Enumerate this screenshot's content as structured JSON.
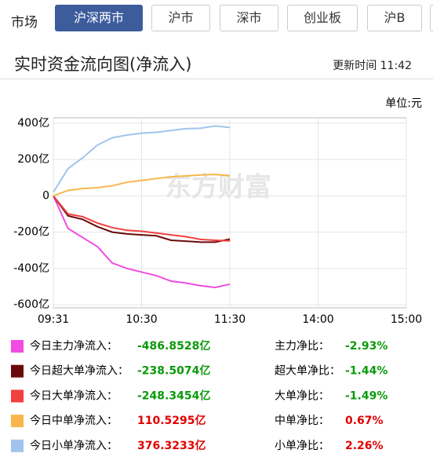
{
  "market_label": "市场",
  "tabs": [
    "沪深两市",
    "沪市",
    "深市",
    "创业板",
    "沪B"
  ],
  "header": {
    "title": "实时资金流向图(净流入)",
    "update_time": "更新时间 11:42"
  },
  "chart_data": {
    "type": "line",
    "unit": "单位:元",
    "watermark": "东方财富",
    "x": [
      0,
      10,
      20,
      30,
      40,
      50,
      60,
      70,
      80,
      90,
      100,
      110,
      120
    ],
    "xlim": [
      0,
      240
    ],
    "xticks": [
      {
        "value": 0,
        "label": "09:31"
      },
      {
        "value": 60,
        "label": "10:30"
      },
      {
        "value": 120,
        "label": "11:30"
      },
      {
        "value": 180,
        "label": "14:00"
      },
      {
        "value": 240,
        "label": "15:00"
      }
    ],
    "ylim": [
      -617,
      430
    ],
    "yticks": [
      {
        "value": 400,
        "label": "400亿"
      },
      {
        "value": 200,
        "label": "200亿"
      },
      0,
      {
        "value": -200,
        "label": "-200亿"
      },
      {
        "value": -400,
        "label": "-400亿"
      },
      {
        "value": -600,
        "label": "-600亿"
      }
    ],
    "grid": true,
    "series": [
      {
        "name": "今日主力净流入：",
        "color": "#f04ce0",
        "values": [
          0,
          -180,
          -230,
          -280,
          -370,
          -400,
          -420,
          -440,
          -470,
          -480,
          -495,
          -505,
          -486.85
        ],
        "value_label": "-486.8528亿",
        "value_color": "#0a9a0a",
        "ratio_name": "主力净比：",
        "ratio": "-2.93%"
      },
      {
        "name": "今日超大单净流入：",
        "color": "#6b0a0a",
        "values": [
          0,
          -110,
          -130,
          -170,
          -200,
          -210,
          -215,
          -220,
          -245,
          -250,
          -255,
          -255,
          -238.51
        ],
        "value_label": "-238.5074亿",
        "value_color": "#0a9a0a",
        "ratio_name": "超大单净比：",
        "ratio": "-1.44%"
      },
      {
        "name": "今日大单净流入：",
        "color": "#f04040",
        "values": [
          0,
          -100,
          -115,
          -150,
          -175,
          -190,
          -195,
          -205,
          -215,
          -225,
          -240,
          -245,
          -248.35
        ],
        "value_label": "-248.3454亿",
        "value_color": "#0a9a0a",
        "ratio_name": "大单净比：",
        "ratio": "-1.49%"
      },
      {
        "name": "今日中单净流入：",
        "color": "#f8b64c",
        "values": [
          0,
          30,
          40,
          45,
          55,
          75,
          85,
          95,
          105,
          110,
          115,
          118,
          110.53
        ],
        "value_label": "110.5295亿",
        "value_color": "#e00000",
        "ratio_name": "中单净比：",
        "ratio": "0.67%"
      },
      {
        "name": "今日小单净流入：",
        "color": "#a0c4ec",
        "values": [
          20,
          150,
          210,
          280,
          320,
          335,
          345,
          350,
          360,
          370,
          372,
          385,
          376.32
        ],
        "value_label": "376.3233亿",
        "value_color": "#e00000",
        "ratio_name": "小单净比：",
        "ratio": "2.26%"
      }
    ]
  }
}
